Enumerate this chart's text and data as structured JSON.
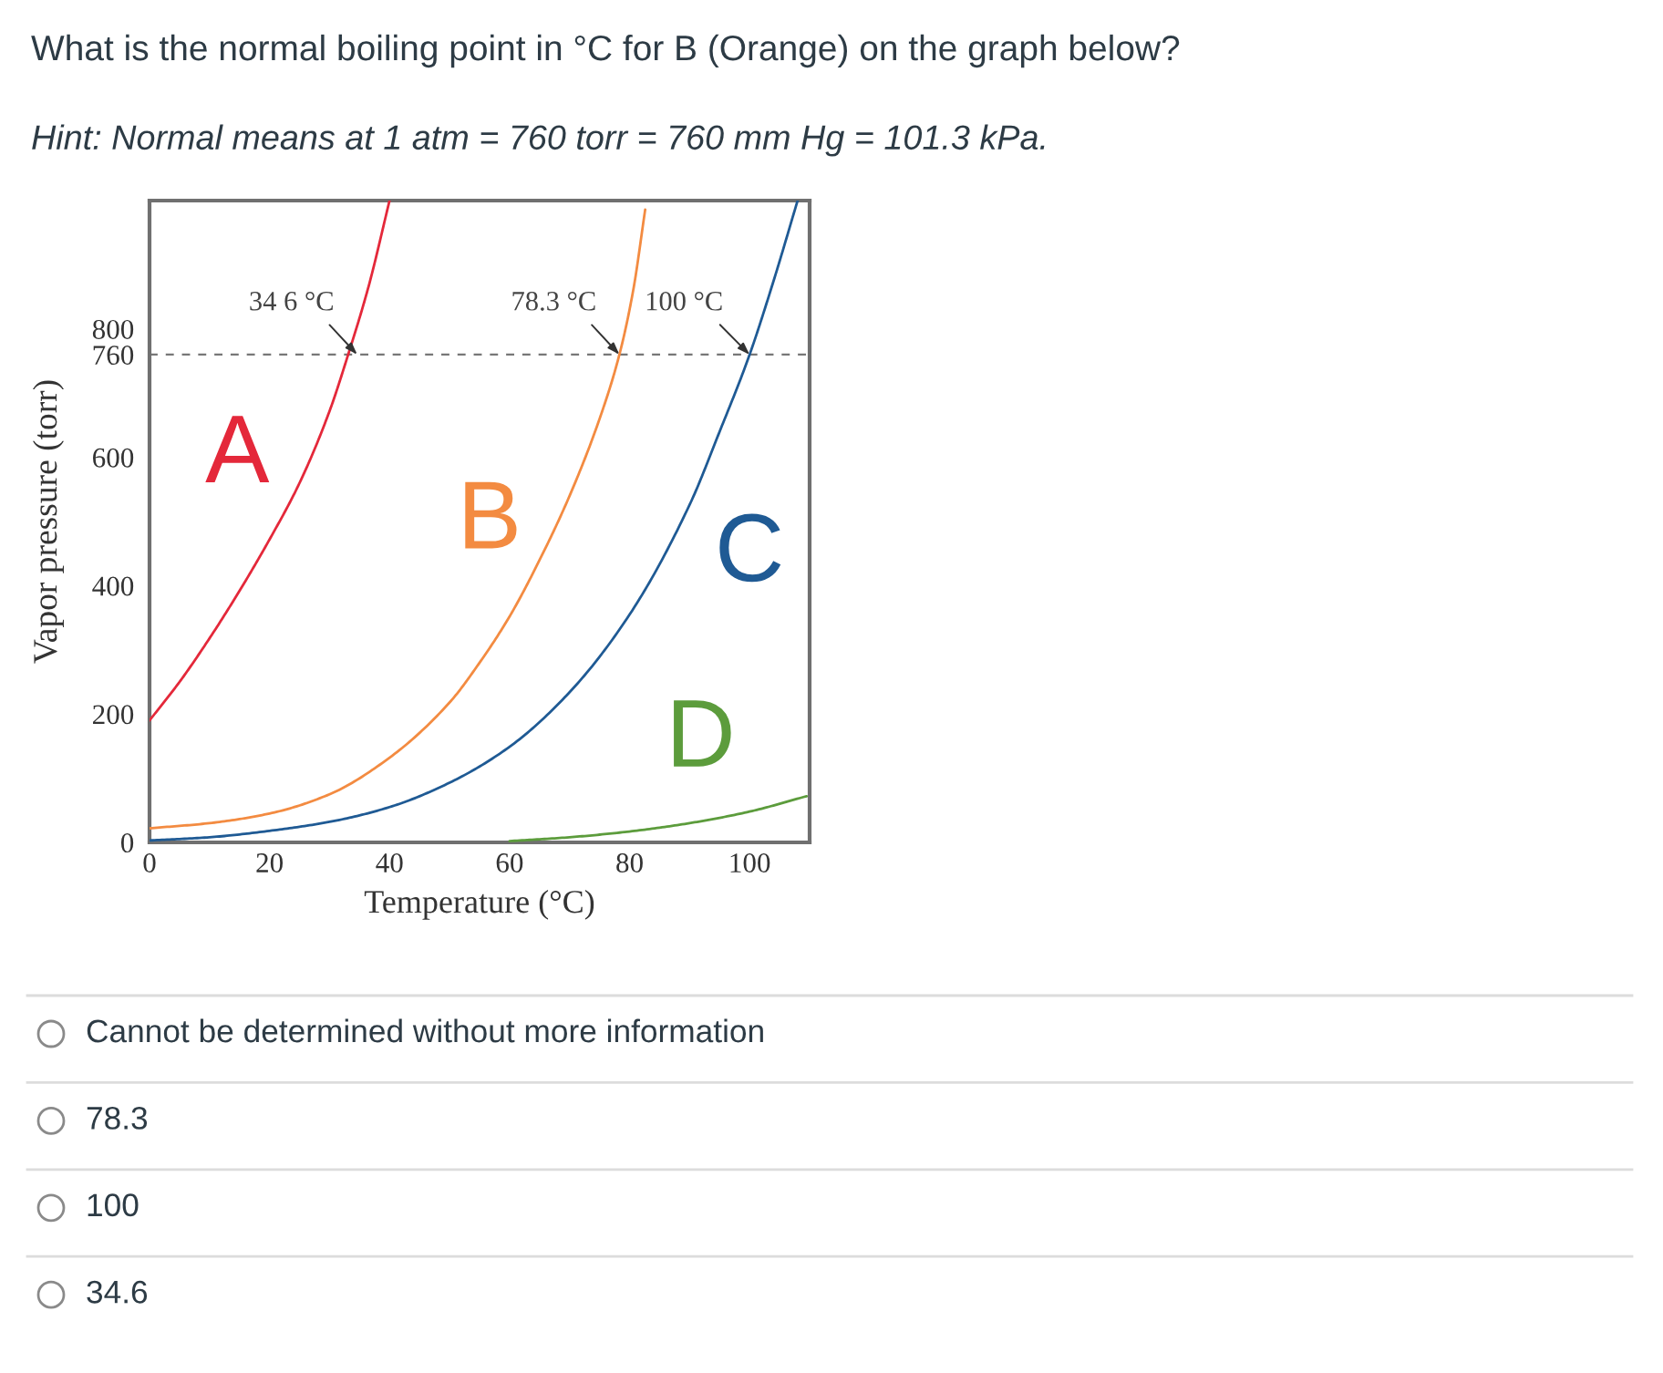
{
  "chart_data": {
    "type": "line",
    "title": "What is the normal boiling point in °C for B (Orange) on the graph below?",
    "subtitle": "Hint: Normal means at 1 atm = 760 torr = 760 mm Hg = 101.3 kPa.",
    "xlabel": "Temperature (°C)",
    "ylabel": "Vapor pressure (torr)",
    "xlim": [
      0,
      110
    ],
    "xticks": [
      0,
      20,
      40,
      60,
      80,
      100
    ],
    "ylim": [
      0,
      1000
    ],
    "yticks": [
      0,
      200,
      400,
      600,
      760,
      800
    ],
    "series": [
      {
        "name": "A",
        "color": "#e4283a",
        "x": [
          0,
          5,
          10,
          15,
          20,
          25,
          30,
          33.1,
          36.5,
          40
        ],
        "values": [
          190,
          250,
          318,
          392,
          472,
          560,
          672,
          760,
          866,
          1000
        ]
      },
      {
        "name": "B",
        "color": "#f38b41",
        "x": [
          0,
          10,
          20,
          30,
          40,
          50,
          55,
          60,
          65,
          70,
          75,
          78.3,
          80.6,
          82.6
        ],
        "values": [
          22,
          30,
          45,
          75,
          132,
          218,
          280,
          352,
          440,
          540,
          660,
          760,
          860,
          986
        ]
      },
      {
        "name": "C",
        "color": "#1f5a94",
        "x": [
          0,
          10,
          20,
          30,
          40,
          50,
          60,
          70,
          80,
          90,
          95,
          100,
          104,
          108
        ],
        "values": [
          3,
          8,
          18,
          32,
          55,
          93,
          149,
          234,
          355,
          526,
          640,
          760,
          875,
          1000
        ]
      },
      {
        "name": "D",
        "color": "#5c9c3c",
        "x": [
          60,
          70,
          80,
          90,
          100,
          109.5
        ],
        "values": [
          2,
          8,
          17,
          30,
          48,
          72
        ]
      }
    ],
    "ref_lines": [
      {
        "axis": "y",
        "value": 760,
        "color": "#777777",
        "line_style": "dashed"
      }
    ],
    "annotations": [
      {
        "text": "34 6 °C",
        "x": 34.6,
        "y": 760
      },
      {
        "text": "78.3 °C",
        "x": 78.3,
        "y": 760
      },
      {
        "text": "100 °C",
        "x": 100,
        "y": 760
      },
      "Cannot be determined without more information",
      "78.3",
      "100",
      "34.6"
    ]
  }
}
